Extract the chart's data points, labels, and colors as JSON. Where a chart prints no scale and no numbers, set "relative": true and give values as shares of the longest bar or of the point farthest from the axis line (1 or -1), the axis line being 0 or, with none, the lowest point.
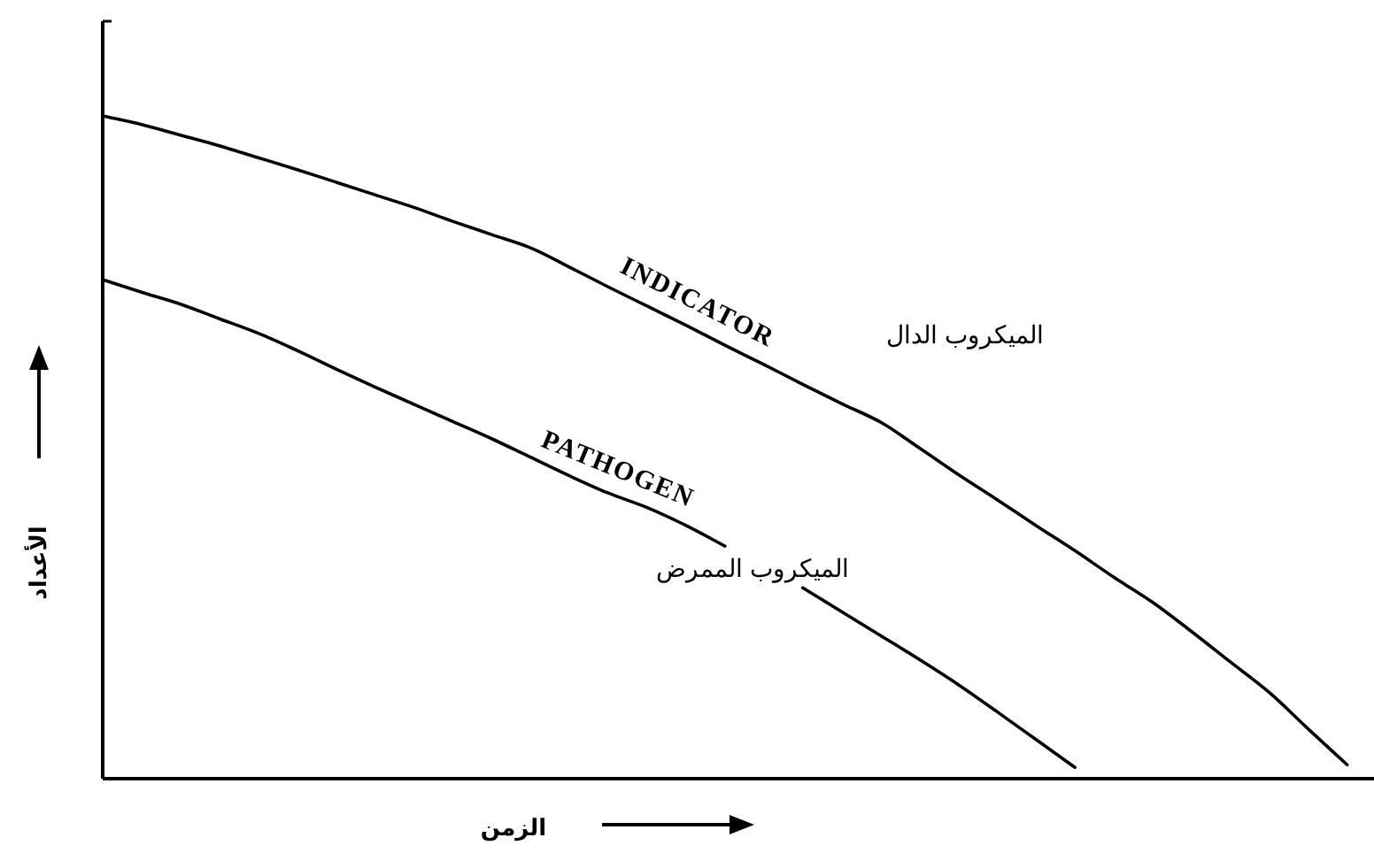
{
  "chart_data": {
    "type": "line",
    "relative": true,
    "xlabel": "الزمن",
    "ylabel": "الأعداد",
    "categories": [
      null,
      null,
      null,
      null,
      null,
      null,
      null,
      null,
      null,
      null,
      null,
      null,
      null,
      null,
      null,
      null,
      null,
      null,
      null,
      null,
      null,
      null,
      null,
      null,
      null,
      null,
      null,
      null,
      null,
      null,
      null,
      null,
      null
    ],
    "series": [
      {
        "name": "INDICATOR",
        "color": "#000000",
        "values": [
          1.0,
          0.987,
          0.971,
          0.955,
          0.937,
          0.919,
          0.9,
          0.881,
          0.862,
          0.841,
          0.821,
          0.801,
          0.772,
          0.742,
          0.713,
          0.684,
          0.654,
          0.625,
          0.595,
          0.566,
          0.538,
          0.499,
          0.459,
          0.421,
          0.382,
          0.344,
          0.304,
          0.266,
          0.222,
          0.176,
          0.13,
          0.075,
          0.021
        ]
      },
      {
        "name": "PATHOGEN",
        "color": "#000000",
        "values": [
          0.753,
          0.734,
          0.716,
          0.694,
          0.672,
          0.646,
          0.618,
          0.591,
          0.565,
          0.539,
          0.513,
          0.485,
          0.457,
          0.431,
          0.409,
          0.382,
          0.351,
          null,
          0.288,
          0.252,
          0.216,
          0.18,
          0.142,
          0.101,
          0.059,
          0.017,
          null,
          null,
          null,
          null,
          null,
          null,
          null
        ]
      }
    ],
    "annotations": [
      "الميكروب الدال",
      "الميكروب الممرض"
    ]
  }
}
